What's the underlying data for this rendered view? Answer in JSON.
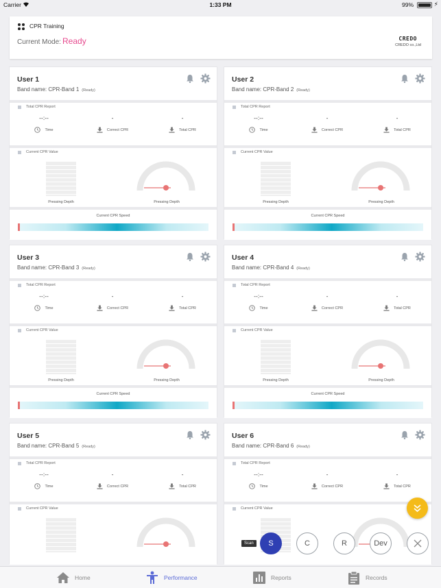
{
  "status": {
    "carrier": "Carrier",
    "time": "1:33 PM",
    "battery": "99%"
  },
  "header": {
    "app_title": "CPR Training",
    "mode_label": "Current Mode:",
    "mode_value": "Ready",
    "brand_logo": "CREDO",
    "brand_sub": "CREDO co.,Ltd"
  },
  "users": [
    {
      "name": "User 1",
      "band": "Band name: CPR-Band 1",
      "status": "(Ready)"
    },
    {
      "name": "User 2",
      "band": "Band name: CPR-Band 2",
      "status": "(Ready)"
    },
    {
      "name": "User 3",
      "band": "Band name: CPR-Band 3",
      "status": "(Ready)"
    },
    {
      "name": "User 4",
      "band": "Band name: CPR-Band 4",
      "status": "(Ready)"
    },
    {
      "name": "User 5",
      "band": "Band name: CPR-Band 5",
      "status": "(Ready)"
    },
    {
      "name": "User 6",
      "band": "Band name: CPR-Band 6",
      "status": "(Ready)"
    }
  ],
  "labels": {
    "total_report": "Total CPR Report",
    "time_value": "--:--",
    "correct_value": "-",
    "total_value": "-",
    "time": "Time",
    "correct_cpr": "Correct CPR",
    "total_cpr": "Total CPR",
    "current_value": "Current CPR Value",
    "pressing_depth": "Pressing Depth",
    "current_speed": "Current CPR Speed"
  },
  "fab": {
    "scan_tip": "Scan",
    "s": "S",
    "c": "C",
    "r": "R",
    "dev": "Dev"
  },
  "tabs": [
    {
      "label": "Home",
      "icon": "home-icon"
    },
    {
      "label": "Performance",
      "icon": "person-icon"
    },
    {
      "label": "Reports",
      "icon": "bar-chart-icon"
    },
    {
      "label": "Records",
      "icon": "clipboard-icon"
    }
  ],
  "colors": {
    "accent": "#5a6ad6",
    "mode_ready": "#e6488d",
    "fab_expand": "#f4bb1a",
    "scan_fab": "#2f3fb3",
    "speed_center": "#10a8c6",
    "marker": "#e87474"
  }
}
